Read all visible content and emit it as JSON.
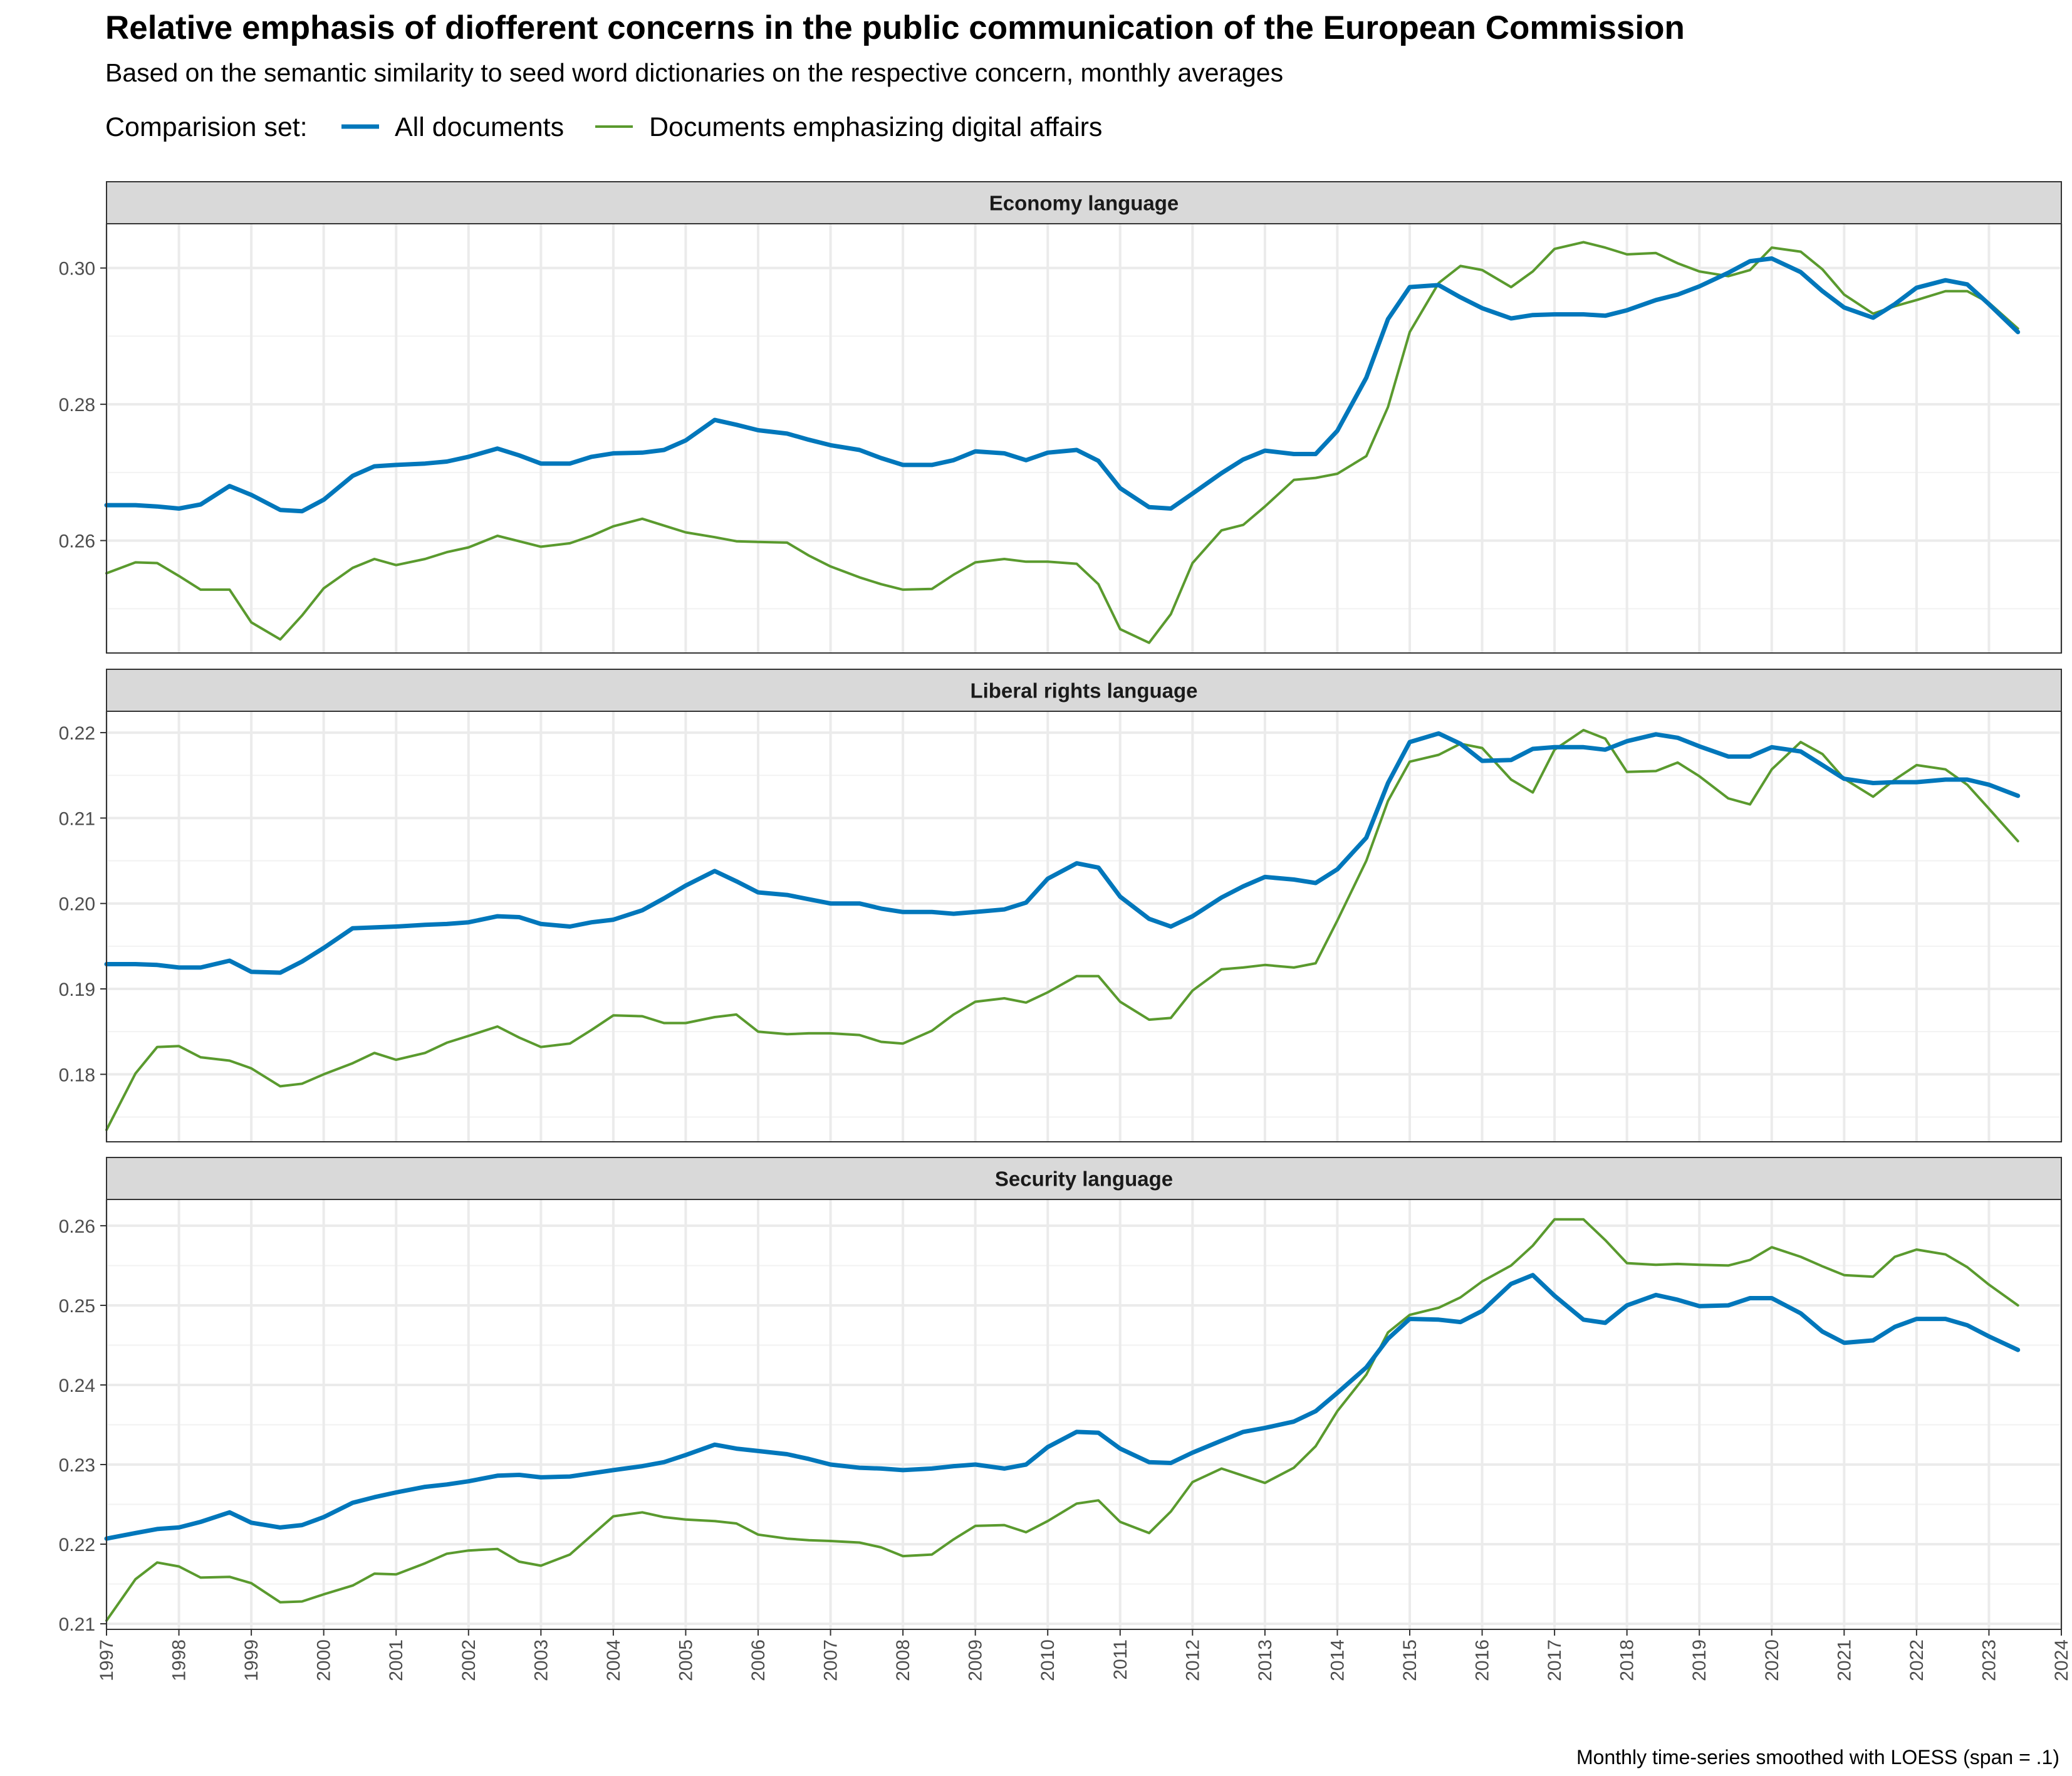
{
  "chart_data": {
    "type": "line",
    "title": "Relative emphasis of diofferent concerns in the public communication of the European Commission",
    "subtitle": "Based on the semantic similarity to seed word dictionaries on the respective concern, monthly averages",
    "legend_title": "Comparision set:",
    "legend_position": "top-left",
    "caption": "Monthly time-series smoothed with LOESS (span = .1)",
    "grid": true,
    "xlim": [
      1997,
      2024
    ],
    "x_ticks": [
      "1997",
      "1998",
      "1999",
      "2000",
      "2001",
      "2002",
      "2003",
      "2004",
      "2005",
      "2006",
      "2007",
      "2008",
      "2009",
      "2010",
      "2011",
      "2012",
      "2013",
      "2014",
      "2015",
      "2016",
      "2017",
      "2018",
      "2019",
      "2020",
      "2021",
      "2022",
      "2023",
      "2024"
    ],
    "series_styles": [
      {
        "name": "All documents",
        "color": "#0077bb"
      },
      {
        "name": "Documents emphasizing digital affairs",
        "color": "#5a9a2e"
      }
    ],
    "x": [
      1997.0,
      1997.4,
      1997.7,
      1998.0,
      1998.3,
      1998.7,
      1999.0,
      1999.4,
      1999.7,
      2000.0,
      2000.4,
      2000.7,
      2001.0,
      2001.4,
      2001.7,
      2002.0,
      2002.4,
      2002.7,
      2003.0,
      2003.4,
      2003.7,
      2004.0,
      2004.4,
      2004.7,
      2005.0,
      2005.4,
      2005.7,
      2006.0,
      2006.4,
      2006.7,
      2007.0,
      2007.4,
      2007.7,
      2008.0,
      2008.4,
      2008.7,
      2009.0,
      2009.4,
      2009.7,
      2010.0,
      2010.4,
      2010.7,
      2011.0,
      2011.4,
      2011.7,
      2012.0,
      2012.4,
      2012.7,
      2013.0,
      2013.4,
      2013.7,
      2014.0,
      2014.4,
      2014.7,
      2015.0,
      2015.4,
      2015.7,
      2016.0,
      2016.4,
      2016.7,
      2017.0,
      2017.4,
      2017.7,
      2018.0,
      2018.4,
      2018.7,
      2019.0,
      2019.4,
      2019.7,
      2020.0,
      2020.4,
      2020.7,
      2021.0,
      2021.4,
      2021.7,
      2022.0,
      2022.4,
      2022.7,
      2023.0,
      2023.4,
      2023.7,
      2024.0
    ],
    "panels": [
      {
        "strip_label": "Economy language",
        "ylim": [
          0.2435,
          0.3065
        ],
        "y_ticks": [
          0.26,
          0.28,
          0.3
        ],
        "y_tick_labels": [
          "0.26",
          "0.28",
          "0.30"
        ],
        "series": [
          {
            "name": "All documents",
            "values": [
              0.2652,
              0.2652,
              0.265,
              0.2647,
              0.2653,
              0.268,
              0.2667,
              0.2645,
              0.2643,
              0.266,
              0.2695,
              0.2709,
              0.2711,
              0.2713,
              0.2716,
              0.2723,
              0.2735,
              0.2725,
              0.2713,
              0.2713,
              0.2723,
              0.2728,
              0.2729,
              0.2733,
              0.2747,
              0.2777,
              0.277,
              0.2762,
              0.2757,
              0.2748,
              0.274,
              0.2733,
              0.2721,
              0.2711,
              0.2711,
              0.2718,
              0.2731,
              0.2728,
              0.2718,
              0.2729,
              0.2733,
              0.2717,
              0.2677,
              0.2649,
              0.2647,
              0.2669,
              0.2699,
              0.2719,
              0.2732,
              0.2727,
              0.2727,
              0.2761,
              0.2839,
              0.2925,
              0.2972,
              0.2975,
              0.2957,
              0.2941,
              0.2926,
              0.2931,
              0.2932,
              0.2932,
              0.293,
              0.2938,
              0.2953,
              0.2961,
              0.2973,
              0.2993,
              0.301,
              0.3014,
              0.2994,
              0.2966,
              0.2942,
              0.2927,
              0.2947,
              0.2971,
              0.2982,
              0.2976,
              0.2947,
              0.2906
            ]
          },
          {
            "name": "Documents emphasizing digital affairs",
            "values": [
              0.2552,
              0.2568,
              0.2567,
              0.2548,
              0.2528,
              0.2528,
              0.248,
              0.2455,
              0.249,
              0.253,
              0.256,
              0.2573,
              0.2564,
              0.2573,
              0.2583,
              0.259,
              0.2607,
              0.2599,
              0.2591,
              0.2596,
              0.2607,
              0.2621,
              0.2632,
              0.2622,
              0.2612,
              0.2605,
              0.2599,
              0.2598,
              0.2597,
              0.2578,
              0.2562,
              0.2546,
              0.2536,
              0.2528,
              0.2529,
              0.255,
              0.2568,
              0.2573,
              0.2569,
              0.2569,
              0.2566,
              0.2536,
              0.247,
              0.245,
              0.2492,
              0.2567,
              0.2615,
              0.2623,
              0.265,
              0.2689,
              0.2692,
              0.2698,
              0.2724,
              0.2796,
              0.2906,
              0.2978,
              0.3003,
              0.2997,
              0.2972,
              0.2995,
              0.3028,
              0.3038,
              0.303,
              0.302,
              0.3022,
              0.3007,
              0.2995,
              0.2988,
              0.2997,
              0.303,
              0.3024,
              0.2998,
              0.2961,
              0.2933,
              0.2944,
              0.2953,
              0.2966,
              0.2966,
              0.2949,
              0.2911
            ]
          }
        ]
      },
      {
        "strip_label": "Liberal rights language",
        "ylim": [
          0.1721,
          0.2225
        ],
        "y_ticks": [
          0.18,
          0.19,
          0.2,
          0.21,
          0.22
        ],
        "y_tick_labels": [
          "0.18",
          "0.19",
          "0.20",
          "0.21",
          "0.22"
        ],
        "series": [
          {
            "name": "All documents",
            "values": [
              0.1929,
              0.1929,
              0.1928,
              0.1925,
              0.1925,
              0.1933,
              0.192,
              0.1919,
              0.1932,
              0.1948,
              0.1971,
              0.1972,
              0.1973,
              0.1975,
              0.1976,
              0.1978,
              0.1985,
              0.1984,
              0.1976,
              0.1973,
              0.1978,
              0.1981,
              0.1992,
              0.2006,
              0.2021,
              0.2038,
              0.2026,
              0.2013,
              0.201,
              0.2005,
              0.2,
              0.2,
              0.1994,
              0.199,
              0.199,
              0.1988,
              0.199,
              0.1993,
              0.2001,
              0.2029,
              0.2047,
              0.2042,
              0.2008,
              0.1982,
              0.1973,
              0.1985,
              0.2007,
              0.202,
              0.2031,
              0.2028,
              0.2024,
              0.204,
              0.2077,
              0.2141,
              0.2189,
              0.2199,
              0.2187,
              0.2167,
              0.2168,
              0.2181,
              0.2183,
              0.2183,
              0.218,
              0.219,
              0.2198,
              0.2194,
              0.2184,
              0.2172,
              0.2172,
              0.2183,
              0.2178,
              0.2162,
              0.2146,
              0.2141,
              0.2142,
              0.2142,
              0.2145,
              0.2145,
              0.2139,
              0.2126
            ]
          },
          {
            "name": "Documents emphasizing digital affairs",
            "values": [
              0.1735,
              0.1801,
              0.1832,
              0.1833,
              0.182,
              0.1816,
              0.1807,
              0.1786,
              0.1789,
              0.18,
              0.1813,
              0.1825,
              0.1817,
              0.1825,
              0.1837,
              0.1845,
              0.1856,
              0.1843,
              0.1832,
              0.1836,
              0.1852,
              0.1869,
              0.1868,
              0.186,
              0.186,
              0.1867,
              0.187,
              0.185,
              0.1847,
              0.1848,
              0.1848,
              0.1846,
              0.1838,
              0.1836,
              0.1851,
              0.187,
              0.1885,
              0.1889,
              0.1884,
              0.1896,
              0.1915,
              0.1915,
              0.1885,
              0.1864,
              0.1866,
              0.1898,
              0.1923,
              0.1925,
              0.1928,
              0.1925,
              0.193,
              0.198,
              0.205,
              0.212,
              0.2166,
              0.2174,
              0.2187,
              0.2182,
              0.2145,
              0.213,
              0.218,
              0.2203,
              0.2193,
              0.2154,
              0.2155,
              0.2165,
              0.2149,
              0.2123,
              0.2116,
              0.2157,
              0.2189,
              0.2175,
              0.2146,
              0.2125,
              0.2145,
              0.2162,
              0.2157,
              0.2139,
              0.2111,
              0.2073
            ]
          }
        ]
      },
      {
        "strip_label": "Security language",
        "ylim": [
          0.2093,
          0.2633
        ],
        "y_ticks": [
          0.21,
          0.22,
          0.23,
          0.24,
          0.25,
          0.26
        ],
        "y_tick_labels": [
          "0.21",
          "0.22",
          "0.23",
          "0.24",
          "0.25",
          "0.26"
        ],
        "series": [
          {
            "name": "All documents",
            "values": [
              0.2207,
              0.2214,
              0.2219,
              0.2221,
              0.2228,
              0.224,
              0.2227,
              0.2221,
              0.2224,
              0.2234,
              0.2252,
              0.2259,
              0.2265,
              0.2272,
              0.2275,
              0.2279,
              0.2286,
              0.2287,
              0.2284,
              0.2285,
              0.2289,
              0.2293,
              0.2298,
              0.2303,
              0.2312,
              0.2325,
              0.232,
              0.2317,
              0.2313,
              0.2307,
              0.23,
              0.2296,
              0.2295,
              0.2293,
              0.2295,
              0.2298,
              0.23,
              0.2295,
              0.23,
              0.2322,
              0.2341,
              0.234,
              0.232,
              0.2303,
              0.2302,
              0.2315,
              0.233,
              0.2341,
              0.2346,
              0.2354,
              0.2367,
              0.239,
              0.2422,
              0.2458,
              0.2483,
              0.2482,
              0.2479,
              0.2493,
              0.2527,
              0.2538,
              0.2512,
              0.2482,
              0.2478,
              0.25,
              0.2513,
              0.2507,
              0.2499,
              0.25,
              0.2509,
              0.2509,
              0.249,
              0.2467,
              0.2453,
              0.2456,
              0.2473,
              0.2483,
              0.2483,
              0.2475,
              0.2461,
              0.2444
            ]
          },
          {
            "name": "Documents emphasizing digital affairs",
            "values": [
              0.2104,
              0.2156,
              0.2177,
              0.2172,
              0.2158,
              0.2159,
              0.2151,
              0.2127,
              0.2128,
              0.2137,
              0.2148,
              0.2163,
              0.2162,
              0.2176,
              0.2188,
              0.2192,
              0.2194,
              0.2178,
              0.2173,
              0.2187,
              0.2211,
              0.2235,
              0.224,
              0.2234,
              0.2231,
              0.2229,
              0.2226,
              0.2212,
              0.2207,
              0.2205,
              0.2204,
              0.2202,
              0.2196,
              0.2185,
              0.2187,
              0.2206,
              0.2223,
              0.2224,
              0.2215,
              0.2229,
              0.2251,
              0.2255,
              0.2228,
              0.2214,
              0.2241,
              0.2278,
              0.2295,
              0.2286,
              0.2277,
              0.2296,
              0.2323,
              0.2367,
              0.2413,
              0.2466,
              0.2488,
              0.2497,
              0.251,
              0.253,
              0.255,
              0.2575,
              0.2608,
              0.2608,
              0.2582,
              0.2553,
              0.2551,
              0.2552,
              0.2551,
              0.255,
              0.2557,
              0.2573,
              0.2561,
              0.2549,
              0.2538,
              0.2536,
              0.2561,
              0.257,
              0.2564,
              0.2548,
              0.2526,
              0.25
            ]
          }
        ]
      }
    ]
  }
}
